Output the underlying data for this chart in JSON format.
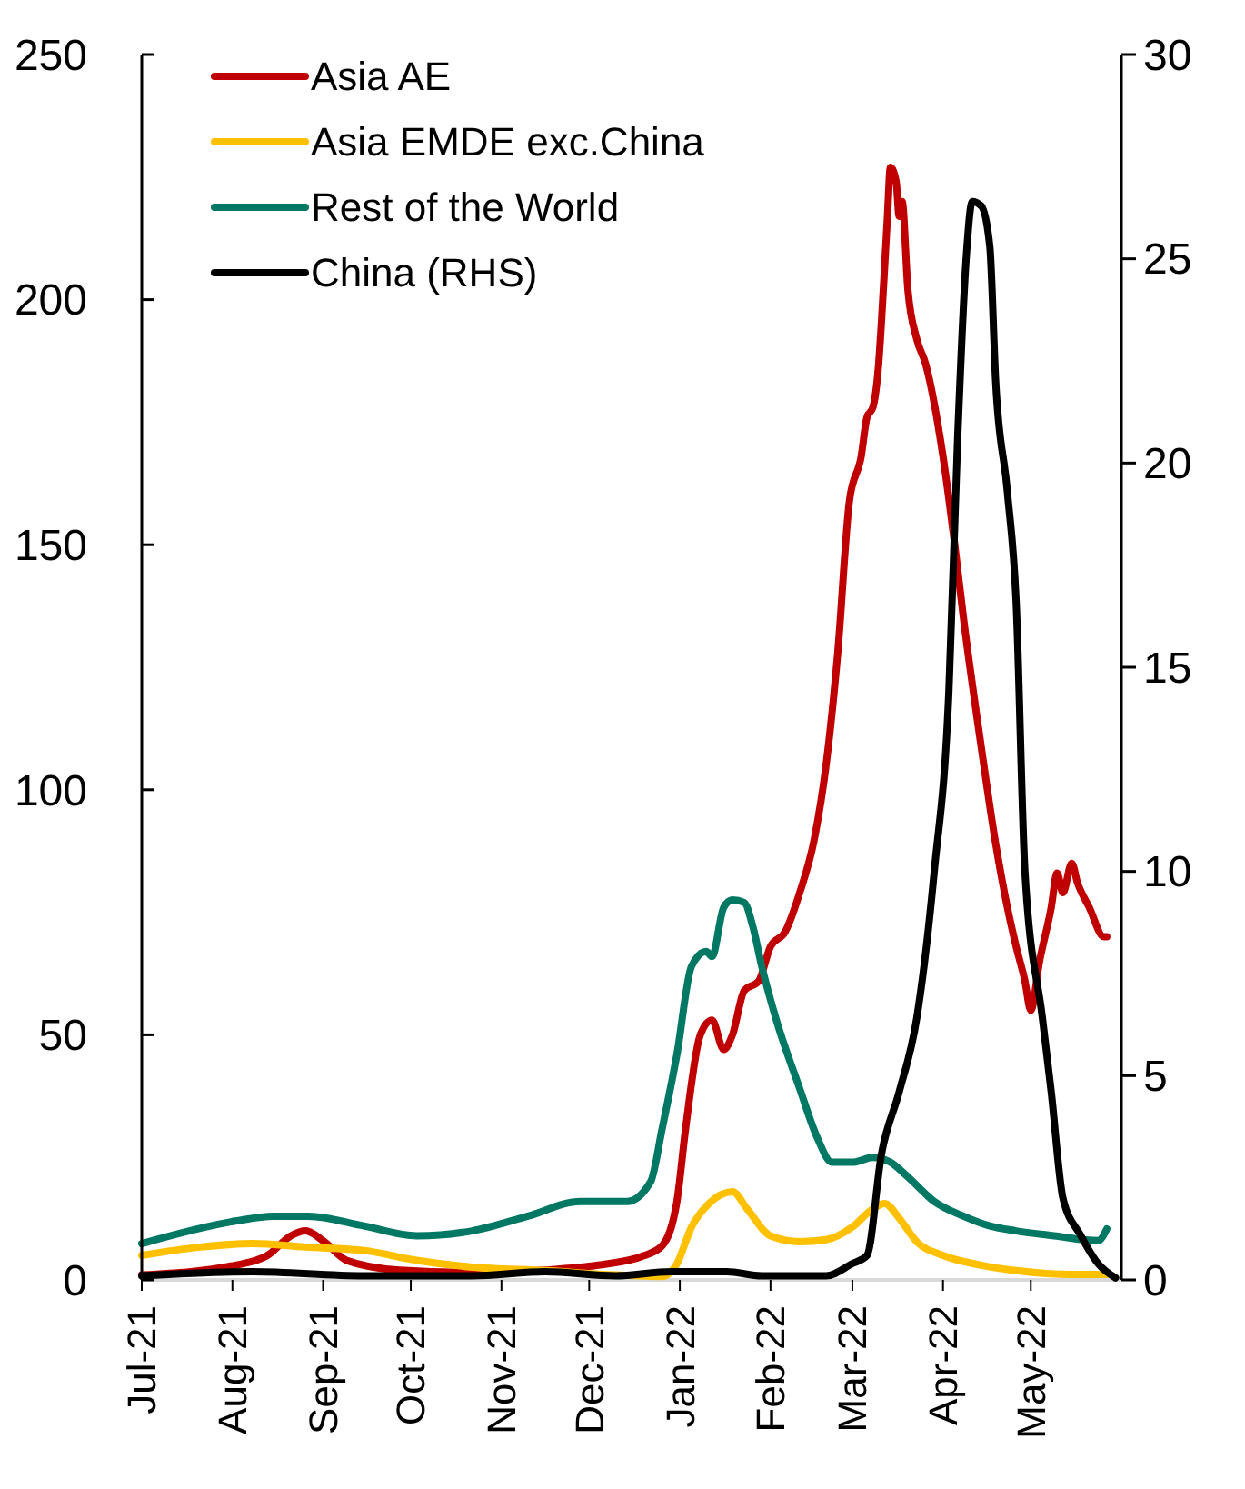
{
  "chart_data": {
    "type": "line",
    "legend": "top left",
    "grid": false,
    "xlim": [
      "2021-07-01",
      "2022-06-01"
    ],
    "xticks": [
      {
        "value": "2021-07-01",
        "label": "Jul-21"
      },
      {
        "value": "2021-08-01",
        "label": "Aug-21"
      },
      {
        "value": "2021-09-01",
        "label": "Sep-21"
      },
      {
        "value": "2021-10-01",
        "label": "Oct-21"
      },
      {
        "value": "2021-11-01",
        "label": "Nov-21"
      },
      {
        "value": "2021-12-01",
        "label": "Dec-21"
      },
      {
        "value": "2022-01-01",
        "label": "Jan-22"
      },
      {
        "value": "2022-02-01",
        "label": "Feb-22"
      },
      {
        "value": "2022-03-01",
        "label": "Mar-22"
      },
      {
        "value": "2022-04-01",
        "label": "Apr-22"
      },
      {
        "value": "2022-05-01",
        "label": "May-22"
      }
    ],
    "ylim": [
      0,
      250
    ],
    "yticks": [
      0,
      50,
      100,
      150,
      200,
      250
    ],
    "y2lim": [
      0,
      30
    ],
    "y2ticks": [
      0,
      5,
      10,
      15,
      20,
      25,
      30
    ],
    "series": [
      {
        "name": "Asia AE",
        "color": "#c00000",
        "x": [
          "2021-07-01",
          "2021-08-02",
          "2021-08-13",
          "2021-08-21",
          "2021-08-26",
          "2021-09-01",
          "2021-09-09",
          "2021-09-27",
          "2021-10-22",
          "2021-11-16",
          "2021-12-04",
          "2021-12-20",
          "2021-12-26",
          "2021-12-31",
          "2022-01-03",
          "2022-01-08",
          "2022-01-12",
          "2022-01-16",
          "2022-01-19",
          "2022-01-23",
          "2022-01-28",
          "2022-02-01",
          "2022-02-06",
          "2022-02-11",
          "2022-02-16",
          "2022-02-20",
          "2022-02-24",
          "2022-02-28",
          "2022-03-04",
          "2022-03-06",
          "2022-03-08",
          "2022-03-10",
          "2022-03-11",
          "2022-03-13",
          "2022-03-14",
          "2022-03-16",
          "2022-03-17",
          "2022-03-18",
          "2022-03-20",
          "2022-03-23",
          "2022-03-26",
          "2022-04-01",
          "2022-04-05",
          "2022-04-08",
          "2022-04-14",
          "2022-04-19",
          "2022-04-23",
          "2022-04-26",
          "2022-04-29",
          "2022-05-01",
          "2022-05-04",
          "2022-05-08",
          "2022-05-10",
          "2022-05-12",
          "2022-05-15",
          "2022-05-17",
          "2022-05-21",
          "2022-05-26",
          "2022-05-27"
        ],
        "values": [
          1,
          3,
          5,
          9,
          10,
          8,
          4,
          2,
          1.5,
          2,
          3,
          5,
          7,
          16,
          31,
          50,
          53,
          47,
          50,
          59,
          61,
          68,
          71,
          79,
          90,
          105,
          128,
          159,
          168,
          176,
          178,
          187,
          196,
          217,
          227,
          224,
          217,
          220,
          202,
          192,
          187,
          168,
          150,
          135,
          109,
          89,
          76,
          68,
          61,
          55,
          65,
          76,
          83,
          79,
          85,
          81,
          76,
          70,
          70
        ]
      },
      {
        "name": "Asia EMDE exc.China",
        "color": "#ffc000",
        "x": [
          "2021-07-01",
          "2021-07-21",
          "2021-08-08",
          "2021-08-26",
          "2021-09-15",
          "2021-10-03",
          "2021-10-22",
          "2021-11-16",
          "2021-12-10",
          "2021-12-26",
          "2021-12-31",
          "2022-01-05",
          "2022-01-11",
          "2022-01-19",
          "2022-01-24",
          "2022-02-01",
          "2022-02-11",
          "2022-02-20",
          "2022-03-01",
          "2022-03-08",
          "2022-03-12",
          "2022-03-17",
          "2022-03-23",
          "2022-04-01",
          "2022-04-14",
          "2022-04-26",
          "2022-05-15",
          "2022-05-27"
        ],
        "values": [
          5,
          6.7,
          7.4,
          6.7,
          6,
          4,
          2.6,
          1.9,
          1,
          0.7,
          3.3,
          10.8,
          15.6,
          18,
          14.5,
          9,
          7.8,
          8.2,
          10.8,
          14.5,
          15.6,
          12.6,
          7.8,
          5,
          3,
          1.9,
          1.1,
          1.1
        ]
      },
      {
        "name": "Rest of the World",
        "color": "#007864",
        "x": [
          "2021-07-01",
          "2021-08-02",
          "2021-08-15",
          "2021-08-27",
          "2021-09-15",
          "2021-10-03",
          "2021-10-22",
          "2021-11-10",
          "2021-11-28",
          "2021-12-14",
          "2021-12-22",
          "2021-12-26",
          "2021-12-31",
          "2022-01-05",
          "2022-01-10",
          "2022-01-12",
          "2022-01-16",
          "2022-01-19",
          "2022-01-23",
          "2022-01-26",
          "2022-01-29",
          "2022-02-03",
          "2022-02-11",
          "2022-02-17",
          "2022-02-22",
          "2022-03-01",
          "2022-03-08",
          "2022-03-14",
          "2022-03-20",
          "2022-03-29",
          "2022-04-08",
          "2022-04-17",
          "2022-04-26",
          "2022-05-09",
          "2022-05-24",
          "2022-05-27"
        ],
        "values": [
          7.4,
          12,
          13,
          13,
          11,
          9,
          10,
          13,
          16,
          16,
          20,
          31,
          46,
          64,
          67,
          66,
          76,
          77.5,
          77,
          72,
          64,
          53,
          39,
          29,
          24,
          24,
          25,
          24,
          21,
          16,
          13,
          11,
          10,
          9,
          8,
          10.4
        ]
      },
      {
        "name": "China (RHS)",
        "color": "#000000",
        "axis": "y2",
        "x": [
          "2021-07-01",
          "2021-08-08",
          "2021-09-15",
          "2021-10-22",
          "2021-11-16",
          "2021-12-10",
          "2021-12-29",
          "2022-01-17",
          "2022-01-29",
          "2022-02-20",
          "2022-03-01",
          "2022-03-06",
          "2022-03-11",
          "2022-03-17",
          "2022-03-23",
          "2022-03-29",
          "2022-04-03",
          "2022-04-06",
          "2022-04-09",
          "2022-04-11",
          "2022-04-14",
          "2022-04-17",
          "2022-04-19",
          "2022-04-23",
          "2022-04-26",
          "2022-04-29",
          "2022-05-05",
          "2022-05-08",
          "2022-05-12",
          "2022-05-18",
          "2022-05-24",
          "2022-05-30"
        ],
        "values": [
          0.1,
          0.2,
          0.1,
          0.1,
          0.2,
          0.1,
          0.2,
          0.2,
          0.1,
          0.1,
          0.4,
          0.6,
          3.1,
          4.6,
          6.4,
          10,
          14.4,
          20.6,
          25.1,
          26.4,
          26.3,
          25.3,
          22,
          19.3,
          16.6,
          10,
          6.4,
          4.6,
          2,
          1.1,
          0.4,
          0.05
        ]
      }
    ]
  }
}
